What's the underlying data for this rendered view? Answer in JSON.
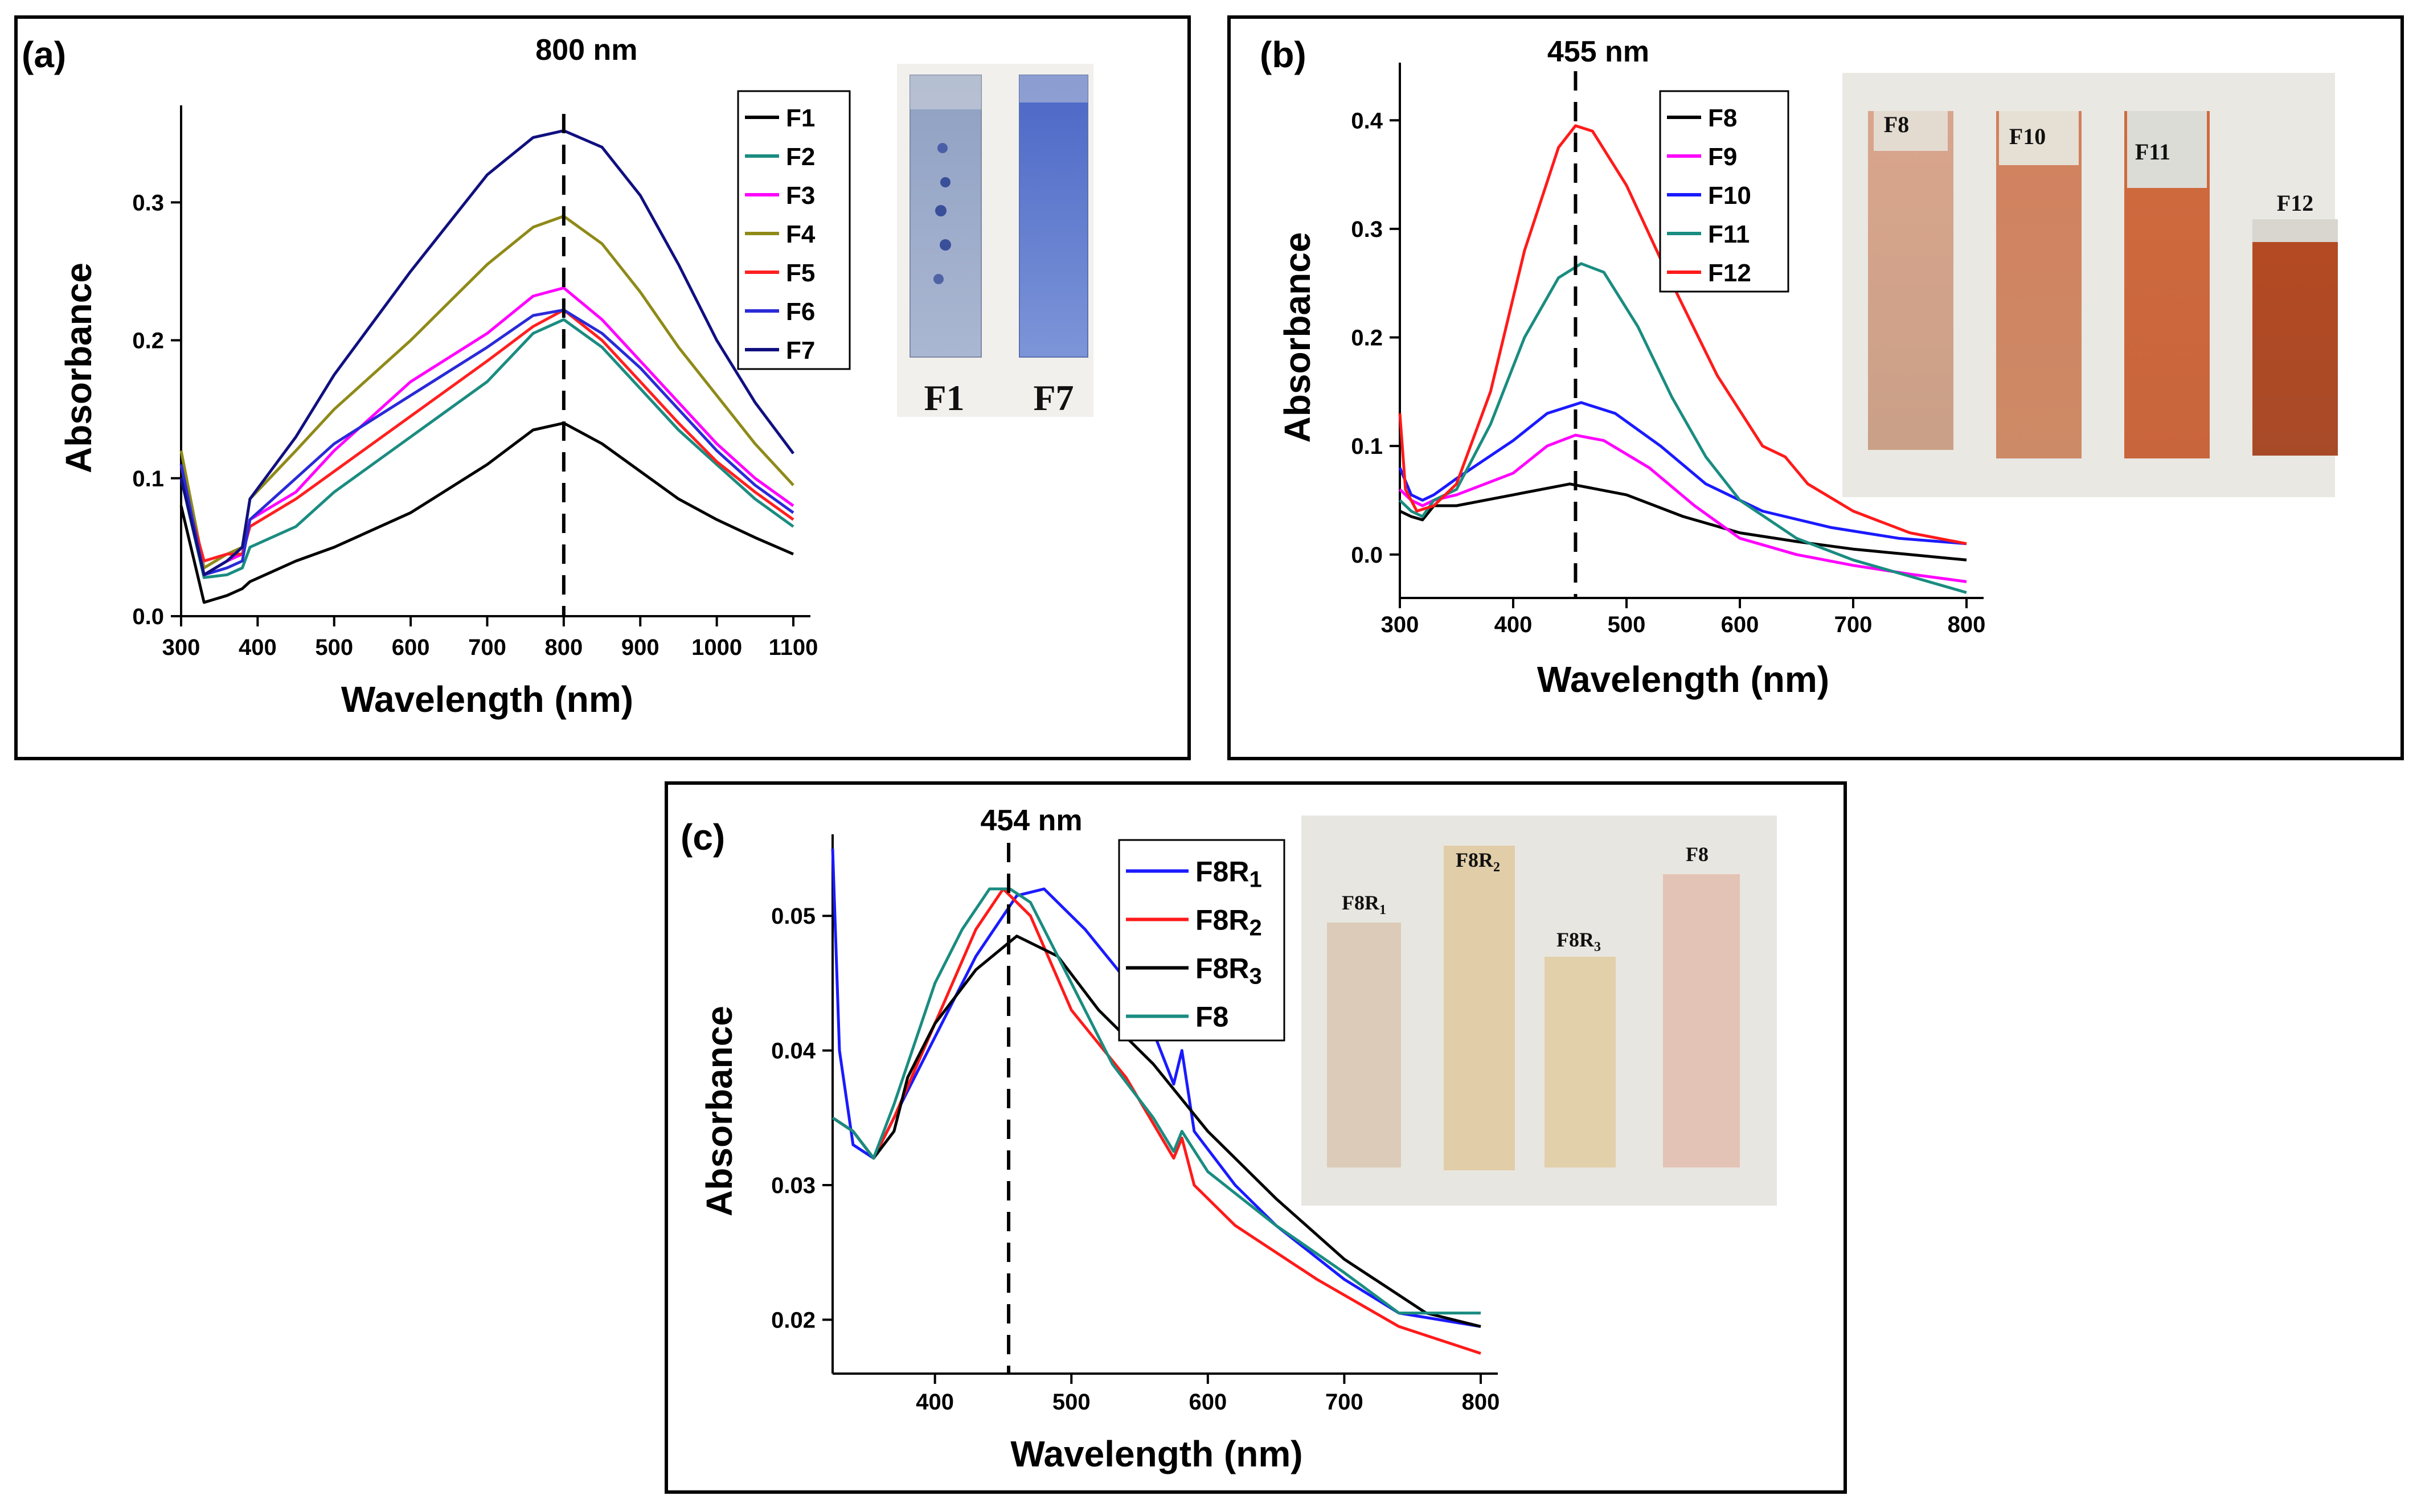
{
  "panels": [
    {
      "id": "a",
      "panel_label": "(a)",
      "peak_label": "800 nm",
      "photo": {
        "labels": [
          "F1",
          "F7"
        ]
      }
    },
    {
      "id": "b",
      "panel_label": "(b)",
      "peak_label": "455 nm",
      "photo": {
        "labels": [
          "F8",
          "F10",
          "F11",
          "F12"
        ]
      }
    },
    {
      "id": "c",
      "panel_label": "(c)",
      "peak_label": "454 nm",
      "photo": {
        "labels": [
          {
            "base": "F8R",
            "sub": "1"
          },
          {
            "base": "F8R",
            "sub": "2"
          },
          {
            "base": "F8R",
            "sub": "3"
          },
          {
            "base": "F8",
            "sub": ""
          }
        ]
      }
    }
  ],
  "chart_data": [
    {
      "type": "line",
      "panel": "a",
      "xlabel": "Wavelength (nm)",
      "ylabel": "Absorbance",
      "xlim": [
        300,
        1100
      ],
      "ylim": [
        0.0,
        0.36
      ],
      "xticks": [
        300,
        400,
        500,
        600,
        700,
        800,
        900,
        1000,
        1100
      ],
      "yticks": [
        0.0,
        0.1,
        0.2,
        0.3
      ],
      "ytick_labels": [
        "0.0",
        "0.1",
        "0.2",
        "0.3"
      ],
      "peak_x": 800,
      "legend_position": "top-right",
      "series": [
        {
          "name": "F1",
          "color": "#000000",
          "x": [
            300,
            330,
            360,
            380,
            390,
            450,
            500,
            600,
            700,
            760,
            800,
            850,
            900,
            950,
            1000,
            1050,
            1100
          ],
          "y": [
            0.08,
            0.01,
            0.015,
            0.02,
            0.025,
            0.04,
            0.05,
            0.075,
            0.11,
            0.135,
            0.14,
            0.125,
            0.105,
            0.085,
            0.07,
            0.057,
            0.045
          ]
        },
        {
          "name": "F2",
          "color": "#1a8c80",
          "x": [
            300,
            330,
            360,
            380,
            390,
            450,
            500,
            600,
            700,
            760,
            800,
            850,
            900,
            950,
            1000,
            1050,
            1100
          ],
          "y": [
            0.1,
            0.028,
            0.03,
            0.035,
            0.05,
            0.065,
            0.09,
            0.13,
            0.17,
            0.205,
            0.215,
            0.195,
            0.165,
            0.135,
            0.11,
            0.085,
            0.065
          ]
        },
        {
          "name": "F3",
          "color": "#ff00ff",
          "x": [
            300,
            330,
            360,
            380,
            390,
            450,
            500,
            600,
            700,
            760,
            800,
            850,
            900,
            950,
            1000,
            1050,
            1100
          ],
          "y": [
            0.11,
            0.03,
            0.04,
            0.045,
            0.07,
            0.09,
            0.12,
            0.17,
            0.205,
            0.232,
            0.238,
            0.215,
            0.185,
            0.155,
            0.125,
            0.1,
            0.08
          ]
        },
        {
          "name": "F4",
          "color": "#8f8a18",
          "x": [
            300,
            330,
            360,
            380,
            390,
            450,
            500,
            600,
            700,
            760,
            800,
            850,
            900,
            950,
            1000,
            1050,
            1100
          ],
          "y": [
            0.12,
            0.035,
            0.045,
            0.05,
            0.085,
            0.12,
            0.15,
            0.2,
            0.255,
            0.282,
            0.29,
            0.27,
            0.235,
            0.195,
            0.16,
            0.125,
            0.095
          ]
        },
        {
          "name": "F5",
          "color": "#ff2020",
          "x": [
            300,
            330,
            360,
            380,
            390,
            450,
            500,
            600,
            700,
            760,
            800,
            850,
            900,
            950,
            1000,
            1050,
            1100
          ],
          "y": [
            0.1,
            0.04,
            0.045,
            0.045,
            0.065,
            0.085,
            0.105,
            0.145,
            0.185,
            0.21,
            0.222,
            0.2,
            0.17,
            0.14,
            0.112,
            0.09,
            0.07
          ]
        },
        {
          "name": "F6",
          "color": "#2a2ad8",
          "x": [
            300,
            330,
            360,
            380,
            390,
            450,
            500,
            600,
            700,
            760,
            800,
            850,
            900,
            950,
            1000,
            1050,
            1100
          ],
          "y": [
            0.11,
            0.03,
            0.035,
            0.04,
            0.07,
            0.1,
            0.125,
            0.16,
            0.195,
            0.218,
            0.222,
            0.205,
            0.18,
            0.15,
            0.12,
            0.095,
            0.075
          ]
        },
        {
          "name": "F7",
          "color": "#101080",
          "x": [
            300,
            330,
            360,
            380,
            390,
            450,
            500,
            600,
            700,
            760,
            800,
            850,
            900,
            950,
            1000,
            1050,
            1100
          ],
          "y": [
            0.1,
            0.03,
            0.04,
            0.05,
            0.085,
            0.13,
            0.175,
            0.25,
            0.32,
            0.347,
            0.352,
            0.34,
            0.305,
            0.255,
            0.2,
            0.155,
            0.118
          ]
        }
      ]
    },
    {
      "type": "line",
      "panel": "b",
      "xlabel": "Wavelength (nm)",
      "ylabel": "Absorbance",
      "xlim": [
        300,
        800
      ],
      "ylim": [
        -0.04,
        0.44
      ],
      "xticks": [
        300,
        400,
        500,
        600,
        700,
        800
      ],
      "yticks": [
        0.0,
        0.1,
        0.2,
        0.3,
        0.4
      ],
      "ytick_labels": [
        "0.0",
        "0.1",
        "0.2",
        "0.3",
        "0.4"
      ],
      "peak_x": 455,
      "legend_position": "top-left",
      "series": [
        {
          "name": "F8",
          "color": "#000000",
          "x": [
            300,
            310,
            320,
            330,
            350,
            400,
            450,
            500,
            550,
            600,
            650,
            700,
            750,
            800
          ],
          "y": [
            0.04,
            0.035,
            0.032,
            0.045,
            0.045,
            0.055,
            0.065,
            0.055,
            0.035,
            0.02,
            0.012,
            0.005,
            0.0,
            -0.005
          ]
        },
        {
          "name": "F9",
          "color": "#ff00ff",
          "x": [
            300,
            310,
            320,
            330,
            350,
            400,
            430,
            455,
            480,
            520,
            560,
            600,
            650,
            700,
            750,
            800
          ],
          "y": [
            0.06,
            0.05,
            0.045,
            0.05,
            0.055,
            0.075,
            0.1,
            0.11,
            0.105,
            0.08,
            0.045,
            0.015,
            0.0,
            -0.01,
            -0.018,
            -0.025
          ]
        },
        {
          "name": "F10",
          "color": "#1a1aff",
          "x": [
            300,
            310,
            320,
            330,
            350,
            400,
            430,
            460,
            490,
            530,
            570,
            620,
            680,
            740,
            800
          ],
          "y": [
            0.08,
            0.055,
            0.05,
            0.055,
            0.07,
            0.105,
            0.13,
            0.14,
            0.13,
            0.1,
            0.065,
            0.04,
            0.025,
            0.015,
            0.01
          ]
        },
        {
          "name": "F11",
          "color": "#1a8c80",
          "x": [
            300,
            310,
            320,
            330,
            350,
            380,
            410,
            440,
            460,
            480,
            510,
            540,
            570,
            600,
            650,
            700,
            750,
            800
          ],
          "y": [
            0.05,
            0.04,
            0.035,
            0.05,
            0.06,
            0.12,
            0.2,
            0.255,
            0.268,
            0.26,
            0.21,
            0.145,
            0.09,
            0.05,
            0.015,
            -0.005,
            -0.02,
            -0.035
          ]
        },
        {
          "name": "F12",
          "color": "#ff1a1a",
          "x": [
            300,
            305,
            315,
            330,
            350,
            380,
            410,
            440,
            455,
            470,
            500,
            540,
            580,
            620,
            640,
            660,
            700,
            750,
            800
          ],
          "y": [
            0.13,
            0.06,
            0.04,
            0.045,
            0.065,
            0.15,
            0.28,
            0.375,
            0.395,
            0.39,
            0.34,
            0.25,
            0.165,
            0.1,
            0.09,
            0.065,
            0.04,
            0.02,
            0.01
          ]
        }
      ]
    },
    {
      "type": "line",
      "panel": "c",
      "xlabel": "Wavelength (nm)",
      "ylabel": "Absorbance",
      "xlim": [
        325,
        800
      ],
      "ylim": [
        0.016,
        0.055
      ],
      "xticks": [
        400,
        500,
        600,
        700,
        800
      ],
      "yticks": [
        0.02,
        0.03,
        0.04,
        0.05
      ],
      "ytick_labels": [
        "0.02",
        "0.03",
        "0.04",
        "0.05"
      ],
      "peak_x": 454,
      "legend_position": "top-right",
      "series": [
        {
          "name": "F8R1",
          "legend_base": "F8R",
          "legend_sub": "1",
          "color": "#1a1aff",
          "x": [
            325,
            330,
            340,
            355,
            370,
            400,
            430,
            460,
            480,
            510,
            550,
            575,
            581,
            590,
            620,
            650,
            700,
            740,
            800
          ],
          "y": [
            0.055,
            0.04,
            0.033,
            0.032,
            0.035,
            0.041,
            0.047,
            0.0515,
            0.052,
            0.049,
            0.044,
            0.0375,
            0.04,
            0.034,
            0.03,
            0.027,
            0.023,
            0.0205,
            0.0195
          ]
        },
        {
          "name": "F8R2",
          "legend_base": "F8R",
          "legend_sub": "2",
          "color": "#ff1a1a",
          "x": [
            325,
            340,
            355,
            370,
            400,
            430,
            450,
            470,
            500,
            540,
            575,
            581,
            590,
            620,
            680,
            740,
            800
          ],
          "y": [
            0.035,
            0.034,
            0.032,
            0.035,
            0.042,
            0.049,
            0.052,
            0.05,
            0.043,
            0.038,
            0.032,
            0.0335,
            0.03,
            0.027,
            0.023,
            0.0195,
            0.0175
          ]
        },
        {
          "name": "F8R3",
          "legend_base": "F8R",
          "legend_sub": "3",
          "color": "#000000",
          "x": [
            325,
            340,
            355,
            370,
            380,
            400,
            430,
            460,
            490,
            520,
            560,
            600,
            650,
            700,
            760,
            800
          ],
          "y": [
            0.035,
            0.034,
            0.032,
            0.034,
            0.038,
            0.042,
            0.046,
            0.0485,
            0.047,
            0.043,
            0.039,
            0.034,
            0.029,
            0.0245,
            0.0205,
            0.0195
          ]
        },
        {
          "name": "F8",
          "legend_base": "F8",
          "legend_sub": "",
          "color": "#1a8c80",
          "x": [
            325,
            340,
            355,
            370,
            400,
            420,
            440,
            455,
            470,
            500,
            530,
            560,
            575,
            581,
            600,
            650,
            700,
            740,
            800
          ],
          "y": [
            0.035,
            0.034,
            0.032,
            0.036,
            0.045,
            0.049,
            0.052,
            0.052,
            0.051,
            0.045,
            0.039,
            0.035,
            0.0325,
            0.034,
            0.031,
            0.027,
            0.0235,
            0.0205,
            0.0205
          ]
        }
      ]
    }
  ]
}
